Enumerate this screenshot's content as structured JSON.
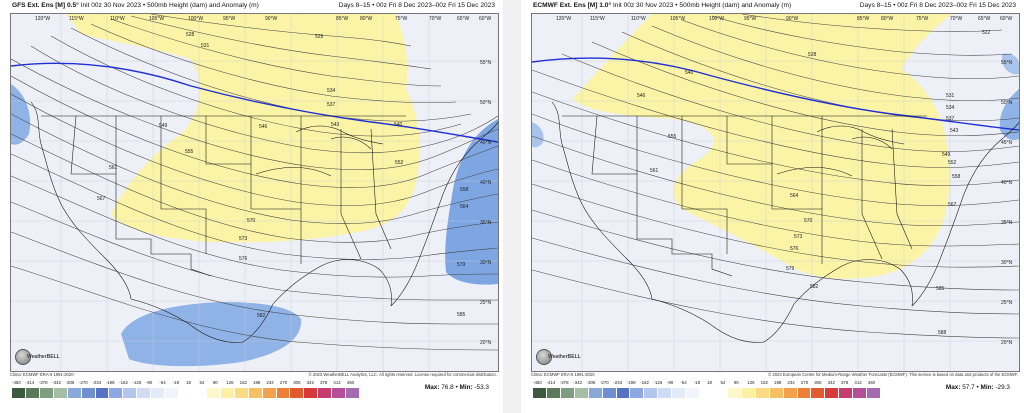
{
  "colors": {
    "page_bg": "#f1f1f4",
    "height_line": "#444444",
    "jet_line": "#1f2fd6",
    "positive_anomaly": "#fbf4a6",
    "negative_anomaly": "#8fb3e6"
  },
  "colorbar": {
    "ticks": [
      "-450",
      "-414",
      "-378",
      "-342",
      "-306",
      "-270",
      "-234",
      "-198",
      "-162",
      "-126",
      "-90",
      "-54",
      "-18",
      "18",
      "54",
      "90",
      "126",
      "162",
      "198",
      "234",
      "270",
      "306",
      "342",
      "378",
      "414",
      "450"
    ],
    "colors": [
      "#3e5a3e",
      "#5b7a5b",
      "#7f9d7f",
      "#a4bda4",
      "#8aa8d8",
      "#6f8fd0",
      "#5573c2",
      "#8ea8e2",
      "#b3c6ee",
      "#d0dcf4",
      "#e3eaf8",
      "#f1f4fb",
      "#ffffff",
      "#ffffff",
      "#fdf8c9",
      "#fbf0a3",
      "#fadb84",
      "#f7c064",
      "#f3a14a",
      "#ee7f38",
      "#e35a2e",
      "#d73a3a",
      "#c73c6e",
      "#b34f96",
      "#a56bb0"
    ]
  },
  "panels": [
    {
      "id": "gfs",
      "model": "GFS Ext. Ens [M] 0.5°",
      "init": "Init 00z 30 Nov 2023 • 500mb Height (dam) and Anomaly (m)",
      "valid": "Days 8–15 • 00z Fri 8 Dec 2023–00z Fri 15 Dec 2023",
      "lon_labels": [
        "120°W",
        "115°W",
        "110°W",
        "105°W",
        "100°W",
        "95°W",
        "90°W",
        "85°W",
        "80°W",
        "75°W",
        "70°W",
        "65°W",
        "60°W"
      ],
      "lat_labels": [
        "55°N",
        "50°N",
        "45°N",
        "40°N",
        "35°N",
        "30°N",
        "25°N",
        "20°N"
      ],
      "contour_labels": [
        "525",
        "528",
        "531",
        "534",
        "537",
        "540",
        "543",
        "546",
        "549",
        "552",
        "555",
        "558",
        "561",
        "564",
        "567",
        "570",
        "573",
        "576",
        "579",
        "582",
        "585"
      ],
      "logo": "WeatherBELL",
      "clim": "Clima: ECMWF ERA-5 1991-2020",
      "copyright": "© 2023 WeatherBELL Analytics, LLC. All rights reserved. License required for commercial distribution.",
      "max_label": "Max:",
      "max": "76.8",
      "min_label": "Min:",
      "min": "-53.3"
    },
    {
      "id": "ecmwf",
      "model": "ECMWF Ext. Ens [M] 1.0°",
      "init": "Init 00z 30 Nov 2023 • 500mb Height (dam) and Anomaly (m)",
      "valid": "Days 8–15 • 00z Fri 8 Dec 2023–00z Fri 15 Dec 2023",
      "lon_labels": [
        "120°W",
        "115°W",
        "110°W",
        "105°W",
        "100°W",
        "95°W",
        "90°W",
        "85°W",
        "80°W",
        "75°W",
        "70°W",
        "65°W",
        "60°W"
      ],
      "lat_labels": [
        "55°N",
        "50°N",
        "45°N",
        "40°N",
        "35°N",
        "30°N",
        "25°N",
        "20°N"
      ],
      "contour_labels": [
        "522",
        "528",
        "531",
        "534",
        "537",
        "540",
        "543",
        "546",
        "549",
        "552",
        "555",
        "558",
        "561",
        "564",
        "567",
        "570",
        "573",
        "576",
        "579",
        "582",
        "585",
        "588"
      ],
      "logo": "WeatherBELL",
      "clim": "Clima: ECMWF ERA-5 1991-2020",
      "copyright": "© 2023 European Centre for Medium-Range Weather Forecasts (ECMWF). This service is based on data and products of the ECMWF.",
      "max_label": "Max:",
      "max": "57.7",
      "min_label": "Min:",
      "min": "-29.3"
    }
  ]
}
